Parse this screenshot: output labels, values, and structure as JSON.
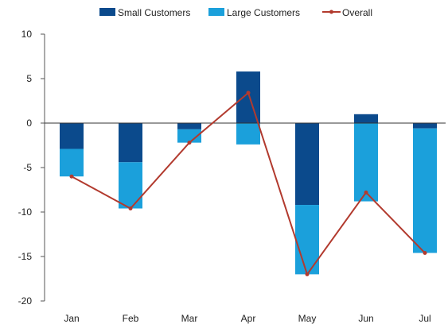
{
  "chart_data": {
    "type": "bar",
    "stacked": true,
    "categories": [
      "Jan",
      "Feb",
      "Mar",
      "Apr",
      "May",
      "Jun",
      "Jul"
    ],
    "series": [
      {
        "name": "Small Customers",
        "kind": "bar",
        "color": "#0b4a8c",
        "values": [
          -2.9,
          -4.4,
          -0.7,
          5.8,
          -9.2,
          1.0,
          -0.6
        ]
      },
      {
        "name": "Large Customers",
        "kind": "bar",
        "color": "#1ba0db",
        "values": [
          -3.1,
          -5.2,
          -1.5,
          -2.4,
          -7.8,
          -8.8,
          -14.0
        ]
      },
      {
        "name": "Overall",
        "kind": "line",
        "color": "#b23a2e",
        "values": [
          -6.0,
          -9.6,
          -2.2,
          3.4,
          -17.0,
          -7.8,
          -14.6
        ]
      }
    ],
    "title": "",
    "xlabel": "",
    "ylabel": "",
    "ylim": [
      -20,
      10
    ],
    "yticks": [
      "10",
      "5",
      "0",
      "-5",
      "-10",
      "-15",
      "-20"
    ],
    "grid": false,
    "legend_position": "top"
  }
}
